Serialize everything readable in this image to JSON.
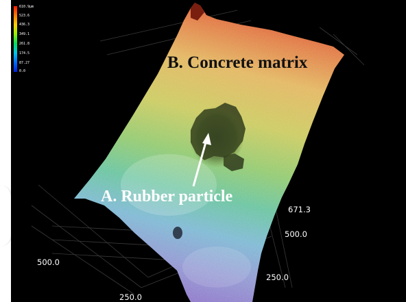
{
  "scene": {
    "legend": {
      "labels": [
        "610.9µm",
        "523.6",
        "436.3",
        "349.1",
        "261.8",
        "174.5",
        "87.27",
        "0.0"
      ]
    },
    "annotations": {
      "concrete_matrix": "B. Concrete matrix",
      "rubber_particle": "A. Rubber particle"
    },
    "axes": {
      "z_max": "671.3",
      "right_mid": "500.0",
      "right_low": "250.0",
      "left_mid": "500.0",
      "bottom": "250.0"
    }
  }
}
